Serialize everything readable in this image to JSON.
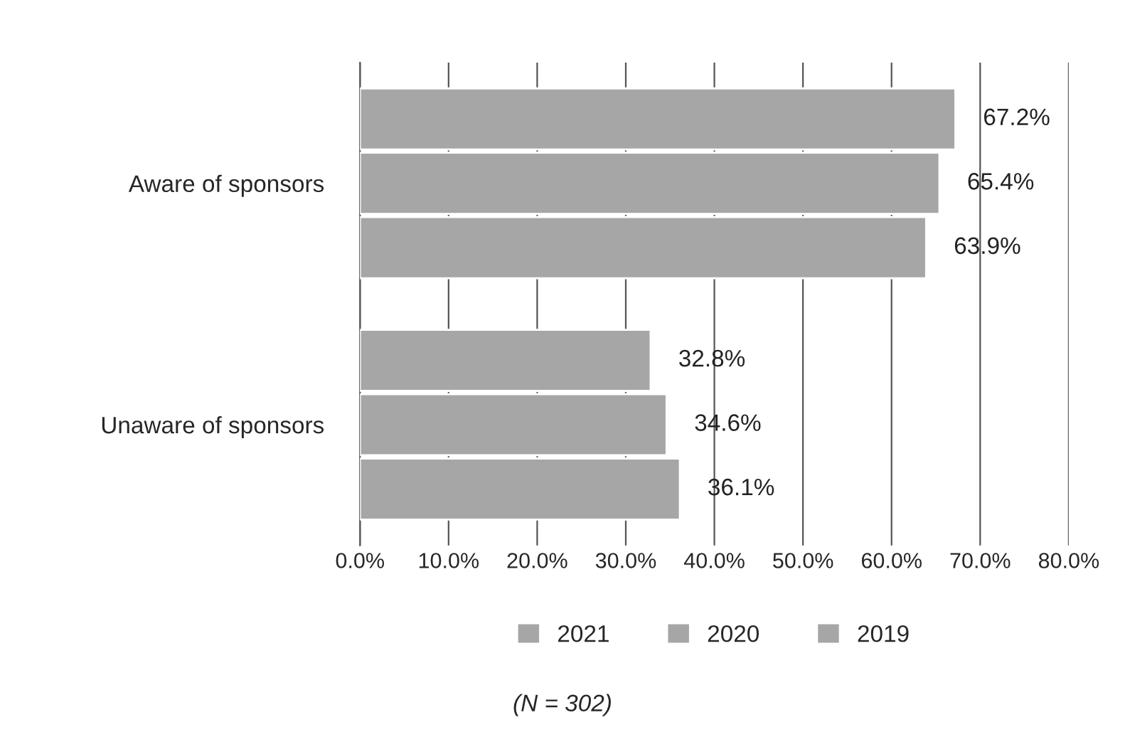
{
  "chart_data": {
    "type": "bar",
    "orientation": "horizontal",
    "categories": [
      "Aware of sponsors",
      "Unaware of sponsors"
    ],
    "series": [
      {
        "name": "2021",
        "color": "#a6a6a6",
        "values": [
          67.2,
          32.8
        ],
        "value_labels": [
          "67.2%",
          "32.8%"
        ]
      },
      {
        "name": "2020",
        "color": "#a6a6a6",
        "values": [
          65.4,
          34.6
        ],
        "value_labels": [
          "65.4%",
          "34.6%"
        ]
      },
      {
        "name": "2019",
        "color": "#a6a6a6",
        "values": [
          63.9,
          36.1
        ],
        "value_labels": [
          "63.9%",
          "36.1%"
        ]
      }
    ],
    "xlim": [
      0,
      80
    ],
    "xticks": [
      {
        "value": 0,
        "label": "0.0%"
      },
      {
        "value": 10,
        "label": "10.0%"
      },
      {
        "value": 20,
        "label": "20.0%"
      },
      {
        "value": 30,
        "label": "30.0%"
      },
      {
        "value": 40,
        "label": "40.0%"
      },
      {
        "value": 50,
        "label": "50.0%"
      },
      {
        "value": 60,
        "label": "60.0%"
      },
      {
        "value": 70,
        "label": "70.0%"
      },
      {
        "value": 80,
        "label": "80.0%"
      }
    ],
    "grid": "x",
    "legend": "bottom",
    "annotations": [
      "(N = 302)"
    ]
  }
}
